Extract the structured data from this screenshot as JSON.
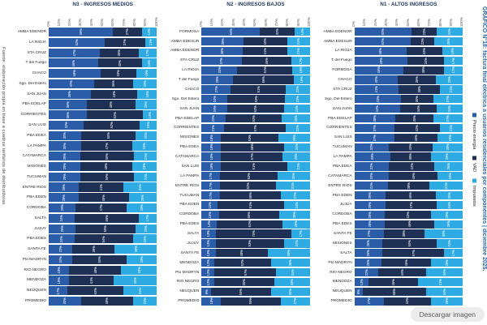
{
  "title": "GRÁFICO N°18: factura final eléctrica a usuarios residenciales por componentes | diciembre 2025.",
  "source_note": "Fuente: elaboración propia en base a cuadros tarifarios de distribuidoras.",
  "download_button_label": "Descargar imagen",
  "legend": {
    "position": "right-vertical",
    "items": [
      {
        "label": "Precio energía",
        "color": "#2B5CA8"
      },
      {
        "label": "VAD",
        "color": "#1F3055"
      },
      {
        "label": "Impuestos",
        "color": "#2FABE4"
      }
    ]
  },
  "axis_ticks": [
    "0%",
    "10%",
    "20%",
    "30%",
    "40%",
    "50%",
    "60%",
    "70%",
    "80%",
    "90%",
    "100%"
  ],
  "chart_data": [
    {
      "type": "bar",
      "orientation": "horizontal",
      "stacked": true,
      "title": "N3 - INGRESOS MEDIOS",
      "xlim": [
        0,
        100
      ],
      "unit": "%",
      "series_names": [
        "Precio energía",
        "VAD",
        "Impuestos"
      ],
      "categories": [
        "AMBA EDENOR",
        "LA RIOJA",
        "STA CRUZ",
        "T del Fuego",
        "CHACO",
        "Sgo. Del Estero",
        "SAN JUAN",
        "PBA EDELAP",
        "CORRIENTES",
        "SAN LUIS",
        "PBA EDEA",
        "LA PAMPA",
        "CATAMARCA",
        "MISIONES",
        "TUCUMAN",
        "ENTRE RIOS",
        "PBA EDEN",
        "CORDOBA",
        "SALTA",
        "JUJUY",
        "PBA EDES",
        "SANTA FE",
        "Pto MADRYN",
        "RIO NEGRO",
        "MENDOZA",
        "NEUQUEN",
        "PROMEDIO"
      ],
      "values": [
        [
          59,
          27,
          14
        ],
        [
          52,
          37,
          11
        ],
        [
          47,
          36,
          17
        ],
        [
          46,
          40,
          14
        ],
        [
          48,
          33,
          19
        ],
        [
          42,
          36,
          22
        ],
        [
          39,
          43,
          18
        ],
        [
          35,
          45,
          20
        ],
        [
          35,
          52,
          13
        ],
        [
          32,
          52,
          16
        ],
        [
          30,
          50,
          20
        ],
        [
          30,
          47,
          23
        ],
        [
          29,
          50,
          21
        ],
        [
          29,
          48,
          23
        ],
        [
          29,
          50,
          21
        ],
        [
          28,
          41,
          31
        ],
        [
          28,
          46,
          26
        ],
        [
          25,
          47,
          28
        ],
        [
          24,
          59,
          17
        ],
        [
          25,
          55,
          20
        ],
        [
          24,
          54,
          22
        ],
        [
          22,
          39,
          39
        ],
        [
          22,
          50,
          28
        ],
        [
          19,
          48,
          33
        ],
        [
          19,
          41,
          40
        ],
        [
          17,
          52,
          31
        ],
        [
          30,
          48,
          22
        ]
      ]
    },
    {
      "type": "bar",
      "orientation": "horizontal",
      "stacked": true,
      "title": "N2 - INGRESOS BAJOS",
      "xlim": [
        0,
        100
      ],
      "unit": "%",
      "series_names": [
        "Precio energía",
        "VAD",
        "Impuestos"
      ],
      "categories": [
        "FORMOSA",
        "AMBA EDESUR",
        "AMBA EDENOR",
        "STA CRUZ",
        "LA RIOJA",
        "T del Fuego",
        "CHACO",
        "Sgo. Del Estero",
        "SAN JUAN",
        "PBA EDELAP",
        "CORRIENTES",
        "MISIONES",
        "PBA EDEA",
        "CATAMARCA",
        "SAN LUIS",
        "LA PAMPA",
        "ENTRE RIOS",
        "TUCUMAN",
        "PBA EDEN",
        "CORDOBA",
        "PBA EDES",
        "SALTA",
        "JUJUY",
        "SANTA FE",
        "MENDOZA",
        "Pto MADRYN",
        "RIO NEGRO",
        "NEUQUEN",
        "PROMEDIO"
      ],
      "values": [
        [
          54,
          32,
          14
        ],
        [
          39,
          40,
          21
        ],
        [
          38,
          41,
          21
        ],
        [
          37,
          46,
          17
        ],
        [
          33,
          51,
          16
        ],
        [
          29,
          56,
          15
        ],
        [
          27,
          51,
          22
        ],
        [
          24,
          53,
          23
        ],
        [
          24,
          52,
          24
        ],
        [
          22,
          52,
          26
        ],
        [
          21,
          57,
          22
        ],
        [
          18,
          53,
          29
        ],
        [
          18,
          58,
          24
        ],
        [
          18,
          57,
          25
        ],
        [
          18,
          61,
          21
        ],
        [
          17,
          53,
          30
        ],
        [
          17,
          52,
          31
        ],
        [
          17,
          56,
          27
        ],
        [
          15,
          61,
          24
        ],
        [
          16,
          56,
          28
        ],
        [
          14,
          61,
          25
        ],
        [
          13,
          70,
          17
        ],
        [
          13,
          63,
          24
        ],
        [
          13,
          48,
          39
        ],
        [
          12,
          52,
          36
        ],
        [
          12,
          57,
          31
        ],
        [
          12,
          55,
          33
        ],
        [
          9,
          55,
          36
        ],
        [
          18,
          55,
          27
        ]
      ]
    },
    {
      "type": "bar",
      "orientation": "horizontal",
      "stacked": true,
      "title": "N1 - ALTOS INGRESOS",
      "xlim": [
        0,
        100
      ],
      "unit": "%",
      "series_names": [
        "Precio energía",
        "VAD",
        "Impuestos"
      ],
      "categories": [
        "AMBA EDENOR",
        "AMBA EDESUR",
        "LA RIOJA",
        "T del Fuego",
        "FORMOSA",
        "CHACO",
        "STA CRUZ",
        "Sgo. Del Estero",
        "SAN JUAN",
        "PBA EDELAP",
        "CORRIENTES",
        "SAN LUIS",
        "TUCUMAN",
        "LA PAMPA",
        "PBA EDEA",
        "CATAMARCA",
        "ENTRE RIOS",
        "PBA EDEN",
        "JUJUY",
        "CORDOBA",
        "PBA EDES",
        "SANTA FE",
        "MISIONES",
        "SALTA",
        "Pto MADRYN",
        "RIO NEGRO",
        "MENDOZA",
        "NEUQUEN",
        "PROMEDIO"
      ],
      "values": [
        [
          53,
          23,
          24
        ],
        [
          52,
          22,
          26
        ],
        [
          48,
          33,
          19
        ],
        [
          49,
          34,
          17
        ],
        [
          45,
          38,
          17
        ],
        [
          40,
          35,
          25
        ],
        [
          41,
          38,
          21
        ],
        [
          43,
          30,
          27
        ],
        [
          42,
          34,
          24
        ],
        [
          38,
          35,
          27
        ],
        [
          37,
          42,
          21
        ],
        [
          37,
          40,
          23
        ],
        [
          32,
          40,
          28
        ],
        [
          33,
          38,
          29
        ],
        [
          32,
          42,
          26
        ],
        [
          32,
          45,
          23
        ],
        [
          31,
          38,
          31
        ],
        [
          29,
          46,
          25
        ],
        [
          29,
          47,
          24
        ],
        [
          28,
          43,
          29
        ],
        [
          28,
          46,
          26
        ],
        [
          27,
          38,
          35
        ],
        [
          26,
          50,
          24
        ],
        [
          26,
          57,
          17
        ],
        [
          25,
          46,
          29
        ],
        [
          22,
          44,
          34
        ],
        [
          13,
          46,
          41
        ],
        [
          8,
          58,
          34
        ],
        [
          27,
          44,
          29
        ]
      ]
    }
  ]
}
